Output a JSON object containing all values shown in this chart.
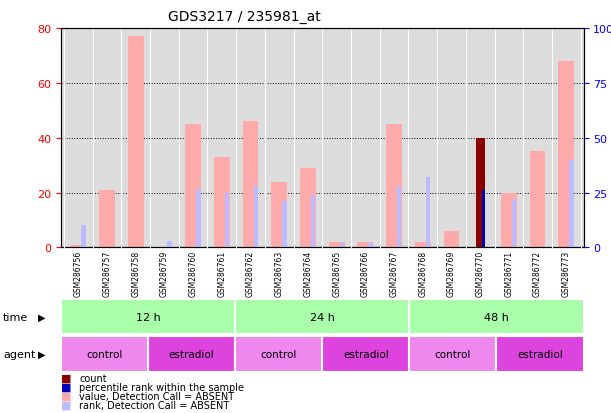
{
  "title": "GDS3217 / 235981_at",
  "samples": [
    "GSM286756",
    "GSM286757",
    "GSM286758",
    "GSM286759",
    "GSM286760",
    "GSM286761",
    "GSM286762",
    "GSM286763",
    "GSM286764",
    "GSM286765",
    "GSM286766",
    "GSM286767",
    "GSM286768",
    "GSM286769",
    "GSM286770",
    "GSM286771",
    "GSM286772",
    "GSM286773"
  ],
  "value_absent": [
    1,
    21,
    77,
    0,
    45,
    33,
    46,
    24,
    29,
    2,
    2,
    45,
    2,
    6,
    0,
    20,
    35,
    68
  ],
  "rank_absent": [
    10,
    0,
    0,
    3,
    26,
    25,
    28,
    21,
    24,
    2,
    2,
    28,
    32,
    0,
    0,
    22,
    0,
    40
  ],
  "count_val": [
    0,
    0,
    0,
    0,
    0,
    0,
    0,
    0,
    0,
    0,
    0,
    0,
    0,
    0,
    40,
    0,
    0,
    0
  ],
  "pct_rank_val": [
    0,
    0,
    0,
    0,
    0,
    0,
    0,
    0,
    0,
    0,
    0,
    0,
    0,
    0,
    26,
    0,
    0,
    0
  ],
  "ylim_left": [
    0,
    80
  ],
  "ylim_right": [
    0,
    100
  ],
  "yticks_left": [
    0,
    20,
    40,
    60,
    80
  ],
  "yticks_right": [
    0,
    25,
    50,
    75,
    100
  ],
  "time_groups": [
    {
      "label": "12 h",
      "start": 0,
      "end": 6
    },
    {
      "label": "24 h",
      "start": 6,
      "end": 12
    },
    {
      "label": "48 h",
      "start": 12,
      "end": 18
    }
  ],
  "agent_groups": [
    {
      "label": "control",
      "start": 0,
      "end": 3
    },
    {
      "label": "estradiol",
      "start": 3,
      "end": 6
    },
    {
      "label": "control",
      "start": 6,
      "end": 9
    },
    {
      "label": "estradiol",
      "start": 9,
      "end": 12
    },
    {
      "label": "control",
      "start": 12,
      "end": 15
    },
    {
      "label": "estradiol",
      "start": 15,
      "end": 18
    }
  ],
  "color_value_absent": "#ffaaaa",
  "color_rank_absent": "#bbbbff",
  "color_count": "#880000",
  "color_pct_rank": "#0000bb",
  "plot_bg": "#dddddd",
  "time_color": "#aaffaa",
  "control_color": "#ee88ee",
  "estradiol_color": "#dd44dd",
  "label_row_bg": "#cccccc"
}
